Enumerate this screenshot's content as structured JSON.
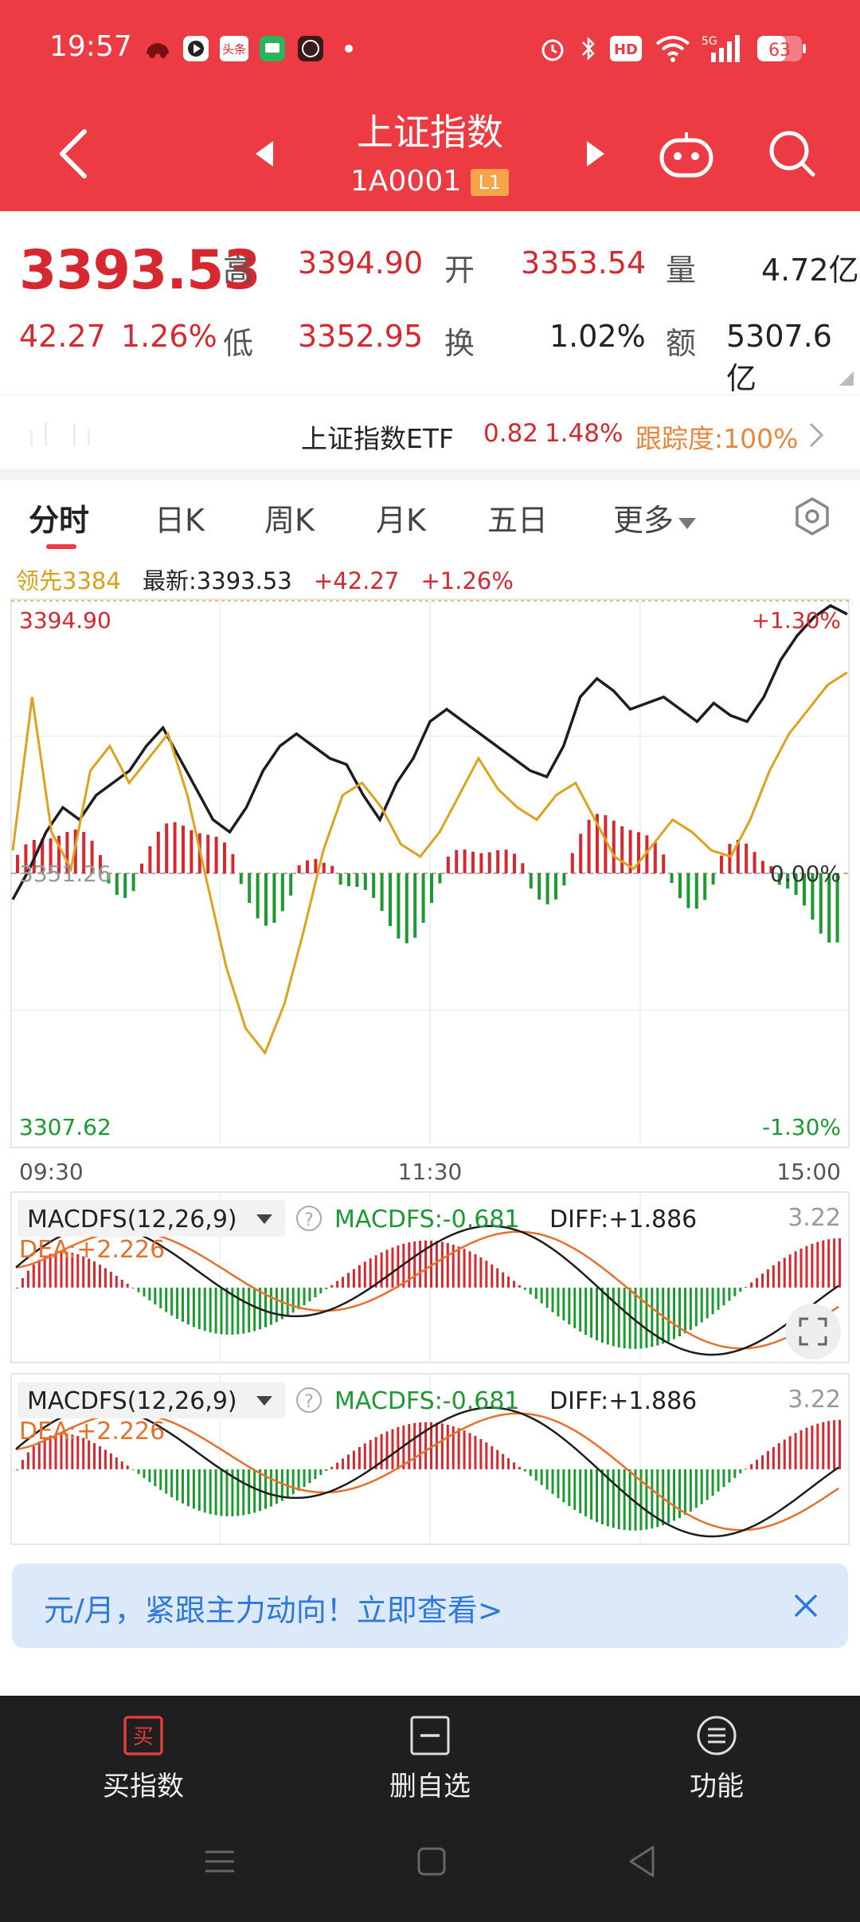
{
  "status_bar": {
    "time": "19:57",
    "signal_label": "5G",
    "battery": "63",
    "hd_label": "HD",
    "app_badges": [
      "头条"
    ]
  },
  "header": {
    "title": "上证指数",
    "code": "1A0001",
    "level_badge": "L1"
  },
  "quote": {
    "price": "3393.53",
    "change": "42.27",
    "change_pct": "1.26%",
    "high_label": "高",
    "high": "3394.90",
    "low_label": "低",
    "low": "3352.95",
    "open_label": "开",
    "open": "3353.54",
    "turnover_label": "换",
    "turnover": "1.02%",
    "volume_label": "量",
    "volume": "4.72亿",
    "amount_label": "额",
    "amount": "5307.6亿"
  },
  "etf": {
    "name": "上证指数ETF",
    "price": "0.82",
    "pct": "1.48%",
    "tracking": "跟踪度:100%"
  },
  "tabs": [
    "分时",
    "日K",
    "周K",
    "月K",
    "五日",
    "更多"
  ],
  "info_row": {
    "lead": "领先3384",
    "latest": "最新:3393.53",
    "change": "+42.27",
    "change_pct": "+1.26%"
  },
  "chart_data": [
    {
      "type": "line",
      "x_ticks": [
        "09:30",
        "11:30",
        "15:00"
      ],
      "y_labels_left": [
        "3394.90",
        "3351.26",
        "3307.62"
      ],
      "y_labels_right": [
        "+1.30%",
        "0.00%",
        "-1.30%"
      ],
      "ylim": [
        3307.62,
        3394.9
      ],
      "series": [
        {
          "values": [
            3347,
            3352,
            3358,
            3362,
            3360,
            3364,
            3366,
            3368,
            3372,
            3375,
            3370,
            3365,
            3360,
            3358,
            3362,
            3368,
            3372,
            3374,
            3372,
            3370,
            3369,
            3364,
            3360,
            3366,
            3370,
            3376,
            3378,
            3376,
            3374,
            3372,
            3370,
            3368,
            3367,
            3372,
            3380,
            3383,
            3381,
            3378,
            3379,
            3380,
            3378,
            3376,
            3379,
            3377,
            3376,
            3380,
            3386,
            3390,
            3393,
            3394.9,
            3393.5
          ]
        },
        {
          "values": [
            3355,
            3380,
            3358,
            3352,
            3368,
            3372,
            3366,
            3370,
            3374,
            3364,
            3350,
            3336,
            3326,
            3322,
            3330,
            3342,
            3355,
            3364,
            3366,
            3362,
            3356,
            3354,
            3358,
            3364,
            3370,
            3365,
            3362,
            3360,
            3364,
            3366,
            3360,
            3354,
            3352,
            3356,
            3360,
            3358,
            3355,
            3354,
            3360,
            3368,
            3374,
            3378,
            3382,
            3384
          ]
        }
      ]
    },
    {
      "type": "bar",
      "title": "MACDFS(12,26,9)",
      "annotations": [
        "MACDFS:-0.681",
        "DIFF:+1.886",
        "DEA:+2.226",
        "3.22"
      ]
    },
    {
      "type": "bar",
      "title": "MACDFS(12,26,9)",
      "annotations": [
        "MACDFS:-0.681",
        "DIFF:+1.886",
        "DEA:+2.226",
        "3.22"
      ]
    }
  ],
  "banner": {
    "text": "元/月，紧跟主力动向！立即查看>"
  },
  "bottom_bar": {
    "buy": "买指数",
    "buy_icon_text": "买",
    "remove": "删自选",
    "functions": "功能"
  },
  "colors": {
    "header": "#EC3B43",
    "up": "#D8282F",
    "down": "#1B9B2F",
    "lead_line": "#E0A11B",
    "macd_dea": "#E8702A"
  }
}
